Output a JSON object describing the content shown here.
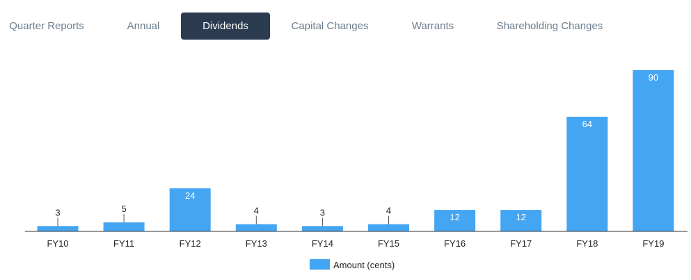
{
  "tabs": [
    {
      "label": "Quarter Reports",
      "active": false
    },
    {
      "label": "Annual",
      "active": false
    },
    {
      "label": "Dividends",
      "active": true
    },
    {
      "label": "Capital Changes",
      "active": false
    },
    {
      "label": "Warrants",
      "active": false
    },
    {
      "label": "Shareholding Changes",
      "active": false
    }
  ],
  "colors": {
    "bar": "#44a5f3",
    "active_tab": "#2b3b50",
    "tab_text": "#6b7d8e"
  },
  "chart_data": {
    "type": "bar",
    "categories": [
      "FY10",
      "FY11",
      "FY12",
      "FY13",
      "FY14",
      "FY15",
      "FY16",
      "FY17",
      "FY18",
      "FY19"
    ],
    "series": [
      {
        "name": "Amount (cents)",
        "values": [
          3,
          5,
          24,
          4,
          3,
          4,
          12,
          12,
          64,
          90
        ]
      }
    ],
    "ylim": [
      0,
      90
    ],
    "grid": false,
    "legend": "bottom-center"
  }
}
